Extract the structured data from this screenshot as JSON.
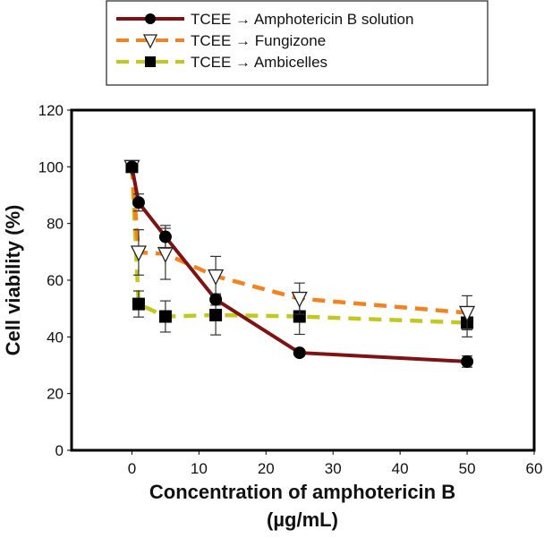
{
  "chart_data": {
    "type": "line",
    "xlabel_lines": [
      "Concentration of amphotericin B",
      "(µg/mL)"
    ],
    "ylabel": "Cell viability (%)",
    "xlim": [
      -9,
      60
    ],
    "ylim": [
      0,
      120
    ],
    "xticks": [
      0,
      10,
      20,
      30,
      40,
      50,
      60
    ],
    "yticks": [
      0,
      20,
      40,
      60,
      80,
      100,
      120
    ],
    "grid": false,
    "legend_position": "top",
    "x": [
      0,
      1,
      5,
      12.5,
      25,
      50
    ],
    "series": [
      {
        "name": "TCEE → Amphotericin B solution",
        "color": "#7f1212",
        "dash": "solid",
        "marker": "circle",
        "values": [
          100,
          87.4,
          75.3,
          53.2,
          34.4,
          31.3
        ],
        "errors": [
          1,
          3,
          4,
          2,
          1,
          2
        ]
      },
      {
        "name": "TCEE → Fungizone",
        "color": "#f5821f",
        "dash": "dashed",
        "marker": "triangle-down-open",
        "values": [
          100,
          69.8,
          69.3,
          61.4,
          53.5,
          48.5
        ],
        "errors": [
          1,
          8,
          9,
          7,
          5.5,
          6
        ]
      },
      {
        "name": "TCEE → Ambicelles",
        "color": "#c3c81e",
        "dash": "dashed",
        "marker": "square",
        "values": [
          100,
          51.6,
          47.2,
          47.7,
          47.2,
          45
        ],
        "errors": [
          1,
          4.6,
          5.5,
          7,
          6.3,
          5
        ]
      }
    ]
  }
}
